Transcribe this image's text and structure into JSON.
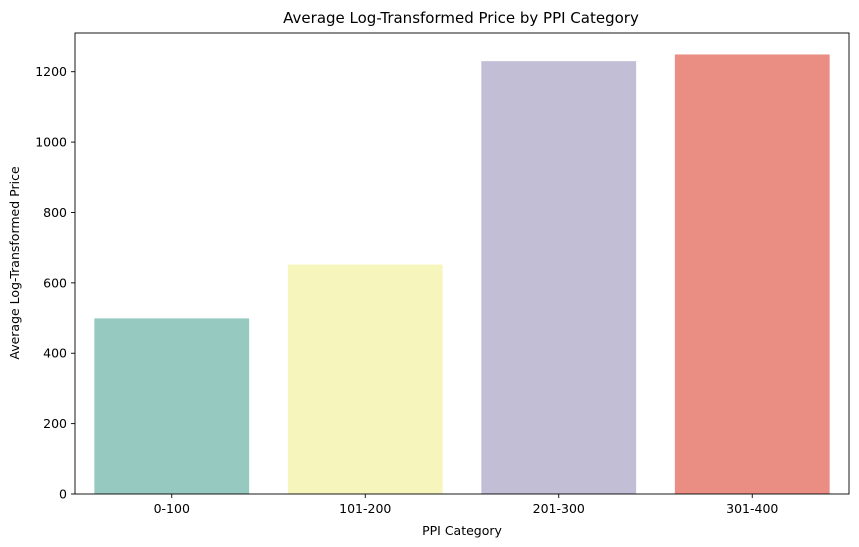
{
  "chart_data": {
    "type": "bar",
    "title": "Average Log-Transformed Price by PPI Category",
    "xlabel": "PPI Category",
    "ylabel": "Average Log-Transformed Price",
    "categories": [
      "0-100",
      "101-200",
      "201-300",
      "301-400"
    ],
    "values": [
      499,
      652,
      1230,
      1249
    ],
    "colors": [
      "#96cac1",
      "#f6f6bc",
      "#c1bed6",
      "#ea8d83"
    ],
    "ylim": [
      0,
      1310
    ],
    "yticks": [
      0,
      200,
      400,
      600,
      800,
      1000,
      1200
    ],
    "grid": false,
    "legend": "none"
  }
}
